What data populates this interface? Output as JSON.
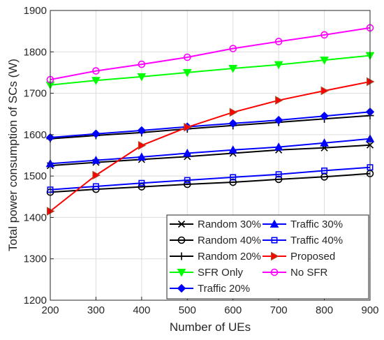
{
  "chart_data": {
    "type": "line",
    "title": "",
    "xlabel": "Number of UEs",
    "ylabel": "Total power consumption of SCs (W)",
    "x": [
      200,
      300,
      400,
      500,
      600,
      700,
      800,
      900
    ],
    "xlim": [
      200,
      900
    ],
    "ylim": [
      1200,
      1900
    ],
    "xticks": [
      "200",
      "300",
      "400",
      "500",
      "600",
      "700",
      "800",
      "900"
    ],
    "yticks": [
      "1200",
      "1300",
      "1400",
      "1500",
      "1600",
      "1700",
      "1800",
      "1900"
    ],
    "grid": true,
    "legend_position": "bottom-right",
    "series": [
      {
        "name": "Random 30%",
        "color": "#000000",
        "marker": "x",
        "values": [
          1525,
          1533,
          1540,
          1547,
          1555,
          1563,
          1568,
          1575
        ]
      },
      {
        "name": "Random 40%",
        "color": "#000000",
        "marker": "circle",
        "values": [
          1461,
          1468,
          1474,
          1480,
          1485,
          1492,
          1498,
          1506
        ]
      },
      {
        "name": "Random 20%",
        "color": "#000000",
        "marker": "plus",
        "values": [
          1590,
          1598,
          1605,
          1614,
          1622,
          1630,
          1638,
          1646
        ]
      },
      {
        "name": "SFR Only",
        "color": "#00ff00",
        "marker": "triangle-down",
        "values": [
          1720,
          1731,
          1740,
          1750,
          1760,
          1769,
          1780,
          1791
        ]
      },
      {
        "name": "Traffic 20%",
        "color": "#0000ff",
        "marker": "diamond",
        "values": [
          1593,
          1602,
          1610,
          1619,
          1627,
          1635,
          1645,
          1655
        ]
      },
      {
        "name": "Traffic 30%",
        "color": "#0000ff",
        "marker": "triangle-up",
        "values": [
          1530,
          1538,
          1546,
          1555,
          1563,
          1570,
          1580,
          1590
        ]
      },
      {
        "name": "Traffic 40%",
        "color": "#0000ff",
        "marker": "square",
        "values": [
          1467,
          1475,
          1483,
          1490,
          1497,
          1504,
          1513,
          1521
        ]
      },
      {
        "name": "Proposed",
        "color": "#ff0000",
        "marker": "triangle-right",
        "values": [
          1415,
          1502,
          1574,
          1618,
          1654,
          1683,
          1706,
          1728
        ]
      },
      {
        "name": "No SFR",
        "color": "#ff00ff",
        "marker": "circle",
        "values": [
          1733,
          1754,
          1770,
          1787,
          1808,
          1825,
          1841,
          1858
        ]
      }
    ]
  }
}
